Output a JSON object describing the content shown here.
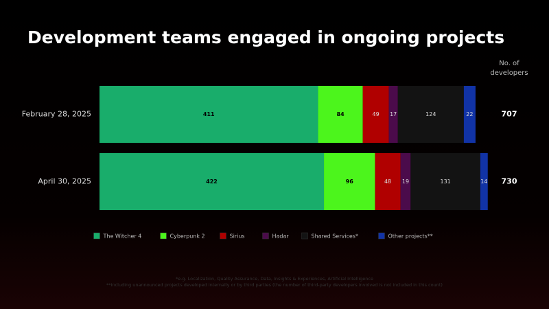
{
  "chart_data": {
    "type": "stacked-bar-horizontal",
    "title": "Development teams engaged in ongoing projects",
    "categories": [
      "February 28, 2025",
      "April 30, 2025"
    ],
    "series": [
      {
        "name": "The Witcher 4",
        "color": "#19ad6b",
        "values": [
          411,
          422
        ]
      },
      {
        "name": "Cyberpunk 2",
        "color": "#4cf51c",
        "values": [
          84,
          96
        ]
      },
      {
        "name": "Sirius",
        "color": "#b00000",
        "values": [
          49,
          48
        ]
      },
      {
        "name": "Hadar",
        "color": "#4b0b4b",
        "values": [
          17,
          19
        ]
      },
      {
        "name": "Shared Services*",
        "color": "#131313",
        "values": [
          124,
          131
        ]
      },
      {
        "name": "Other projects**",
        "color": "#1133a6",
        "values": [
          22,
          14
        ]
      }
    ],
    "totals_label": [
      "No. of",
      "developers"
    ],
    "totals": [
      707,
      730
    ],
    "footnotes": [
      "*e.g. Localization, Quality Assurance, Data, Insights & Experiences, Artificial Intelligence",
      "**Including unannounced projects developed internally or by third parties (the number of third-party developers involved is not included in this count)"
    ]
  }
}
